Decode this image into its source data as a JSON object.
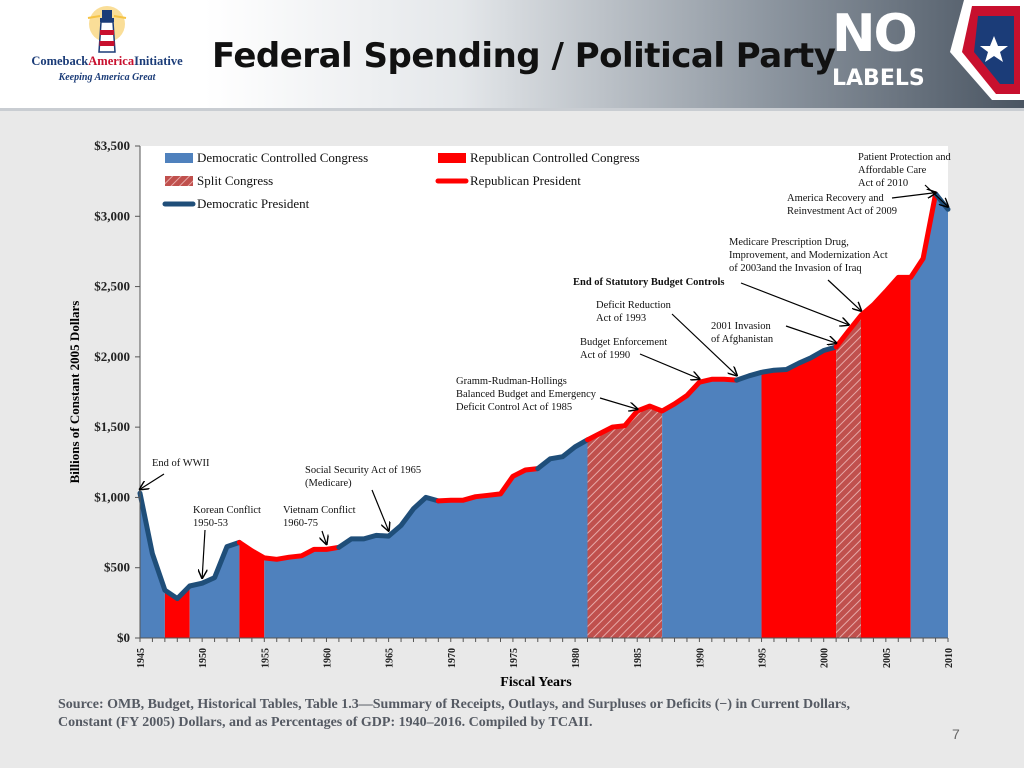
{
  "header": {
    "logo_left_text1": "ComebackAmericaInitiative",
    "logo_left_text1_a": "Comeback",
    "logo_left_text1_b": "America",
    "logo_left_text1_c": "Initiative",
    "logo_left_text2": "Keeping America Great",
    "title": "Federal Spending / Political Party",
    "logo_right_no": "NO",
    "logo_right_labels": "LABELS"
  },
  "footer": {
    "source_line1": "Source: OMB, Budget, Historical Tables, Table 1.3—Summary of Receipts, Outlays, and Surpluses or Deficits (−) in Current Dollars,",
    "source_line2": "Constant (FY 2005) Dollars, and as Percentages of GDP: 1940–2016.   Compiled by TCAII.",
    "page_number": "7"
  },
  "colors": {
    "democratic_area": "#4f81bd",
    "republican_area": "#ff0000",
    "democratic_president_line": "#1f4e79",
    "republican_president_line": "#ff0000",
    "split_hatch_bg": "#c0504d",
    "split_hatch_line": "#ffffff",
    "plot_bg": "#ffffff",
    "slide_bg": "#e9e9e9"
  },
  "chart_data": {
    "type": "area",
    "title": "",
    "xlabel": "Fiscal Years",
    "ylabel": "Billions  of Constant 2005 Dollars",
    "xlim": [
      1945,
      2010
    ],
    "ylim": [
      0,
      3500
    ],
    "y_ticks": [
      {
        "v": 0,
        "label": "$0"
      },
      {
        "v": 500,
        "label": "$500"
      },
      {
        "v": 1000,
        "label": "$1,000"
      },
      {
        "v": 1500,
        "label": "$1,500"
      },
      {
        "v": 2000,
        "label": "$2,000"
      },
      {
        "v": 2500,
        "label": "$2,500"
      },
      {
        "v": 3000,
        "label": "$3,000"
      },
      {
        "v": 3500,
        "label": "$3,500"
      }
    ],
    "x_ticks": [
      "1945",
      "1950",
      "1955",
      "1960",
      "1965",
      "1970",
      "1975",
      "1980",
      "1985",
      "1990",
      "1995",
      "2000",
      "2005",
      "2010"
    ],
    "grid": false,
    "legend_position": "top-left",
    "legend": [
      {
        "label": "Democratic Controlled Congress",
        "kind": "dem_congress"
      },
      {
        "label": "Republican Controlled Congress",
        "kind": "rep_congress"
      },
      {
        "label": "Split Congress",
        "kind": "split"
      },
      {
        "label": "Republican President",
        "kind": "rep_president"
      },
      {
        "label": "Democratic President",
        "kind": "dem_president"
      }
    ],
    "series": [
      {
        "name": "Spending",
        "x": [
          1945,
          1946,
          1947,
          1948,
          1949,
          1950,
          1951,
          1952,
          1953,
          1954,
          1955,
          1956,
          1957,
          1958,
          1959,
          1960,
          1961,
          1962,
          1963,
          1964,
          1965,
          1966,
          1967,
          1968,
          1969,
          1970,
          1971,
          1972,
          1973,
          1974,
          1975,
          1976,
          1977,
          1978,
          1979,
          1980,
          1981,
          1982,
          1983,
          1984,
          1985,
          1986,
          1987,
          1988,
          1989,
          1990,
          1991,
          1992,
          1993,
          1994,
          1995,
          1996,
          1997,
          1998,
          1999,
          2000,
          2001,
          2002,
          2003,
          2004,
          2005,
          2006,
          2007,
          2008,
          2009,
          2010
        ],
        "values": [
          1030,
          600,
          340,
          280,
          370,
          390,
          430,
          650,
          680,
          620,
          570,
          560,
          575,
          585,
          630,
          630,
          645,
          705,
          705,
          730,
          725,
          800,
          920,
          1000,
          975,
          980,
          980,
          1005,
          1015,
          1025,
          1150,
          1195,
          1205,
          1275,
          1290,
          1360,
          1410,
          1455,
          1500,
          1510,
          1615,
          1650,
          1615,
          1665,
          1725,
          1820,
          1840,
          1840,
          1835,
          1865,
          1890,
          1905,
          1910,
          1955,
          1995,
          2045,
          2070,
          2185,
          2295,
          2370,
          2465,
          2565,
          2565,
          2700,
          3160,
          3050
        ]
      }
    ],
    "congress_control": [
      {
        "start": 1945,
        "end": 1947,
        "party": "Democratic"
      },
      {
        "start": 1947,
        "end": 1949,
        "party": "Republican"
      },
      {
        "start": 1949,
        "end": 1953,
        "party": "Democratic"
      },
      {
        "start": 1953,
        "end": 1955,
        "party": "Republican"
      },
      {
        "start": 1955,
        "end": 1981,
        "party": "Democratic"
      },
      {
        "start": 1981,
        "end": 1987,
        "party": "Split"
      },
      {
        "start": 1987,
        "end": 1995,
        "party": "Democratic"
      },
      {
        "start": 1995,
        "end": 2001,
        "party": "Republican"
      },
      {
        "start": 2001,
        "end": 2003,
        "party": "Split"
      },
      {
        "start": 2003,
        "end": 2007,
        "party": "Republican"
      },
      {
        "start": 2007,
        "end": 2010,
        "party": "Democratic"
      }
    ],
    "presidents": [
      {
        "start": 1945,
        "end": 1953,
        "party": "Democratic"
      },
      {
        "start": 1953,
        "end": 1961,
        "party": "Republican"
      },
      {
        "start": 1961,
        "end": 1969,
        "party": "Democratic"
      },
      {
        "start": 1969,
        "end": 1977,
        "party": "Republican"
      },
      {
        "start": 1977,
        "end": 1981,
        "party": "Democratic"
      },
      {
        "start": 1981,
        "end": 1993,
        "party": "Republican"
      },
      {
        "start": 1993,
        "end": 2001,
        "party": "Democratic"
      },
      {
        "start": 2001,
        "end": 2009,
        "party": "Republican"
      },
      {
        "start": 2009,
        "end": 2010,
        "party": "Democratic"
      }
    ],
    "annotations": [
      {
        "lines": [
          "End of WWII"
        ],
        "target": [
          1945,
          1030
        ],
        "bold": false
      },
      {
        "lines": [
          "Korean Conflict",
          "1950-53"
        ],
        "target": [
          1950,
          400
        ],
        "bold": false
      },
      {
        "lines": [
          "Vietnam Conflict",
          "1960-75"
        ],
        "target": [
          1960,
          640
        ],
        "bold": false
      },
      {
        "lines": [
          "Social Security Act of 1965",
          "(Medicare)"
        ],
        "target": [
          1965,
          735
        ],
        "bold": false
      },
      {
        "lines": [
          "Gramm-Rudman-Hollings",
          "Balanced Budget and Emergency",
          " Deficit Control Act of 1985"
        ],
        "target": [
          1985,
          1600
        ],
        "bold": false
      },
      {
        "lines": [
          "Budget Enforcement",
          "Act of 1990"
        ],
        "target": [
          1990,
          1815
        ],
        "bold": false
      },
      {
        "lines": [
          "Deficit Reduction",
          "Act of 1993"
        ],
        "target": [
          1993,
          1840
        ],
        "bold": false
      },
      {
        "lines": [
          "End of Statutory Budget Controls"
        ],
        "target": [
          2002,
          2200
        ],
        "bold": true
      },
      {
        "lines": [
          "2001 Invasion",
          "of Afghanistan"
        ],
        "target": [
          2001,
          2070
        ],
        "bold": false
      },
      {
        "lines": [
          "Medicare Prescription Drug,",
          "Improvement, and Modernization Act",
          "of 2003and the Invasion of Iraq"
        ],
        "target": [
          2003,
          2300
        ],
        "bold": false
      },
      {
        "lines": [
          "America Recovery and",
          "Reinvestment Act of 2009"
        ],
        "target": [
          2009,
          3140
        ],
        "bold": false
      },
      {
        "lines": [
          "Patient Protection and",
          "Affordable Care",
          "Act of 2010"
        ],
        "target": [
          2010,
          3040
        ],
        "bold": false
      }
    ]
  }
}
